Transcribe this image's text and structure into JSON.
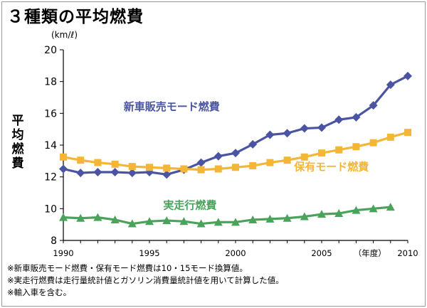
{
  "header": {
    "title": "３種類の平均燃費"
  },
  "axis": {
    "unit": "(km/ℓ)",
    "ylabel": "平均燃費",
    "year_label": "（年度）"
  },
  "notes": [
    "※新車販売モード燃費・保有モード燃費は10・15モード換算値。",
    "※実走行燃費は走行量統計値とガソリン消費量統計値を用いて計算した値。",
    "※輸入車を含む。"
  ],
  "chart_data": {
    "type": "line",
    "title": "３種類の平均燃費",
    "ylabel": "平均燃費",
    "yunit": "(km/ℓ)",
    "ylim": [
      8,
      20
    ],
    "yticks": [
      8,
      10,
      12,
      14,
      16,
      18,
      20
    ],
    "xlim": [
      1990,
      2010
    ],
    "xticks": [
      1990,
      1995,
      2000,
      2005,
      2010
    ],
    "grid": false,
    "series": [
      {
        "name": "新車販売モード燃費",
        "color": "#4b54a3",
        "marker": "diamond",
        "label_x": 1993.5,
        "label_y": 16.2,
        "x": [
          1990,
          1991,
          1992,
          1993,
          1994,
          1995,
          1996,
          1997,
          1998,
          1999,
          2000,
          2001,
          2002,
          2003,
          2004,
          2005,
          2006,
          2007,
          2008,
          2009,
          2010
        ],
        "values": [
          12.5,
          12.25,
          12.3,
          12.3,
          12.25,
          12.3,
          12.15,
          12.45,
          12.9,
          13.3,
          13.5,
          14.05,
          14.65,
          14.75,
          15.05,
          15.1,
          15.6,
          15.75,
          16.5,
          17.8,
          18.35
        ]
      },
      {
        "name": "保有モード燃費",
        "color": "#f3b637",
        "marker": "square",
        "label_x": 2003.4,
        "label_y": 12.4,
        "x": [
          1990,
          1991,
          1992,
          1993,
          1994,
          1995,
          1996,
          1997,
          1998,
          1999,
          2000,
          2001,
          2002,
          2003,
          2004,
          2005,
          2006,
          2007,
          2008,
          2009,
          2010
        ],
        "values": [
          13.25,
          13.05,
          12.9,
          12.8,
          12.65,
          12.6,
          12.55,
          12.5,
          12.45,
          12.5,
          12.6,
          12.7,
          12.9,
          13.05,
          13.25,
          13.5,
          13.7,
          13.9,
          14.15,
          14.5,
          14.8
        ]
      },
      {
        "name": "実走行燃費",
        "color": "#4aa35a",
        "marker": "triangle",
        "label_x": 1995.8,
        "label_y": 10.0,
        "x": [
          1990,
          1991,
          1992,
          1993,
          1994,
          1995,
          1996,
          1997,
          1998,
          1999,
          2000,
          2001,
          2002,
          2003,
          2004,
          2005,
          2006,
          2007,
          2008,
          2009
        ],
        "values": [
          9.45,
          9.4,
          9.45,
          9.3,
          9.05,
          9.2,
          9.25,
          9.2,
          9.05,
          9.15,
          9.15,
          9.3,
          9.35,
          9.4,
          9.5,
          9.65,
          9.7,
          9.9,
          10.0,
          10.1
        ]
      }
    ]
  }
}
